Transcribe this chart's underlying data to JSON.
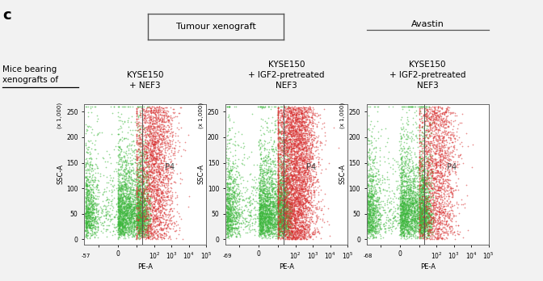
{
  "panel_label": "c",
  "main_box_title": "Tumour xenograft",
  "avastin_label": "Avastin",
  "row_label_line1": "Mice bearing",
  "row_label_line2": "xenografts of",
  "col_titles": [
    "KYSE150\n+ NEF3",
    "KYSE150\n+ IGF2-pretreated\nNEF3",
    "KYSE150\n+ IGF2-pretreated\nNEF3"
  ],
  "gate_label": "P4",
  "xlabel": "PE-A",
  "ylabel": "SSC-A",
  "ylabel_extra": "(x 1,000)",
  "x_start_labels": [
    "-57",
    "-69",
    "-68"
  ],
  "ytick_vals": [
    0,
    50,
    100,
    150,
    200,
    250
  ],
  "ytick_labels": [
    "0",
    "50",
    "100",
    "150",
    "200",
    "250"
  ],
  "bg_color": "#f2f2f2",
  "plot_bg": "#ffffff",
  "green_color": "#3db83d",
  "red_color": "#d93030",
  "n_green": 4000,
  "n_red_plot1": 2500,
  "n_red_plot2": 4500,
  "n_red_plot3": 2000,
  "seed": 42,
  "fig_width": 6.72,
  "fig_height": 3.48,
  "dpi": 100
}
